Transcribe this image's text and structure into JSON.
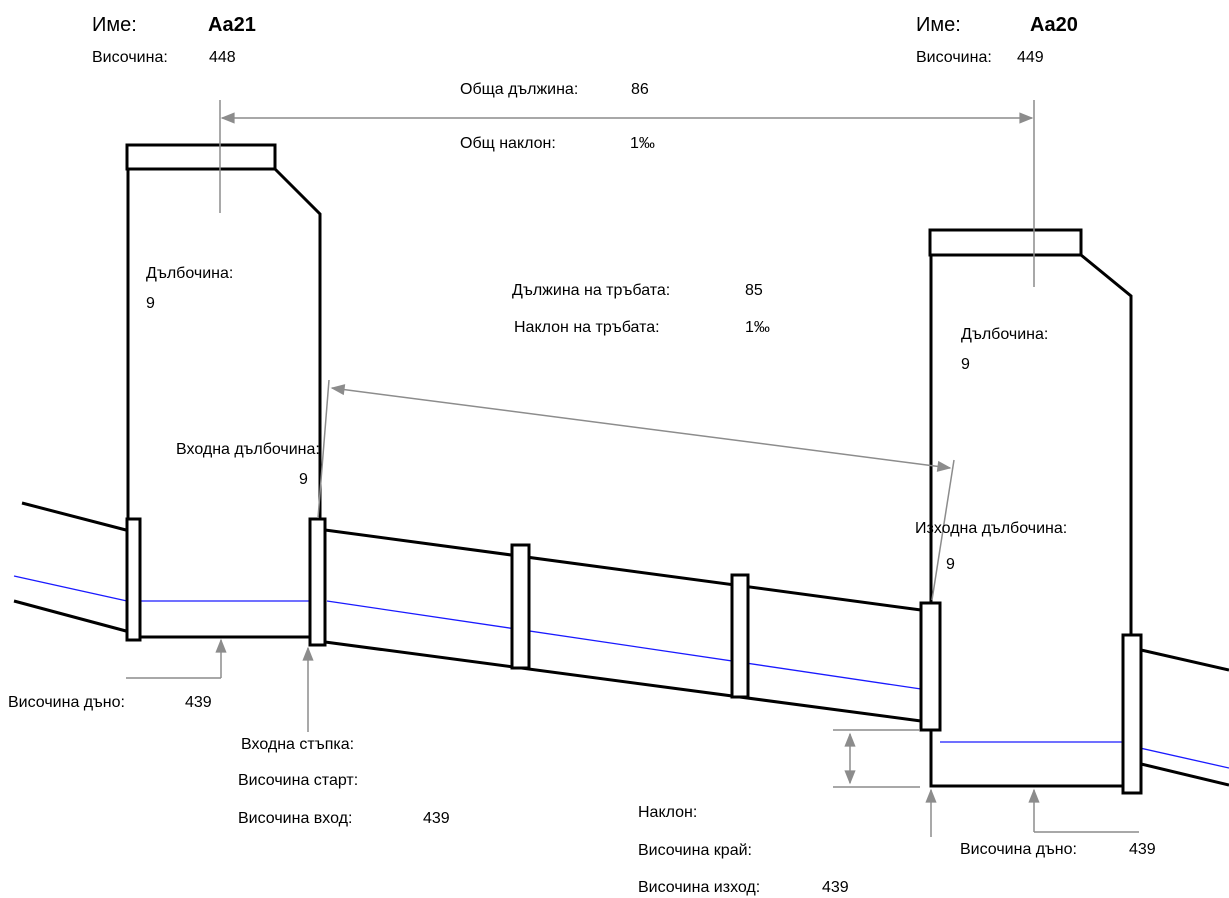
{
  "manhole_left": {
    "name_label": "Име:",
    "name": "Aa21",
    "height_label": "Височина:",
    "height": "448",
    "depth_label": "Дълбочина:",
    "depth": "9",
    "inlet_depth_label": "Входна дълбочина:",
    "inlet_depth": "9",
    "bottom_height_label": "Височина дъно:",
    "bottom_height": "439"
  },
  "manhole_right": {
    "name_label": "Име:",
    "name": "Aa20",
    "height_label": "Височина:",
    "height": "449",
    "depth_label": "Дълбочина:",
    "depth": "9",
    "outlet_depth_label": "Изходна дълбочина:",
    "outlet_depth": "9",
    "bottom_height_label": "Височина дъно:",
    "bottom_height": "439"
  },
  "total": {
    "length_label": "Обща дължина:",
    "length": "86",
    "slope_label": "Общ наклон:",
    "slope": "1‰"
  },
  "pipe": {
    "length_label": "Дължина на тръбата:",
    "length": "85",
    "slope_label": "Наклон на тръбата:",
    "slope": "1‰"
  },
  "inlet": {
    "step_label": "Входна стъпка:",
    "start_height_label": "Височина старт:",
    "inlet_height_label": "Височина вход:",
    "inlet_height": "439"
  },
  "outlet": {
    "slope_label": "Наклон:",
    "end_height_label": "Височина край:",
    "outlet_height_label": "Височина изход:",
    "outlet_height": "439"
  },
  "colors": {
    "outline": "#000000",
    "dimension": "#8c8c8c",
    "water": "#1a1aff"
  }
}
